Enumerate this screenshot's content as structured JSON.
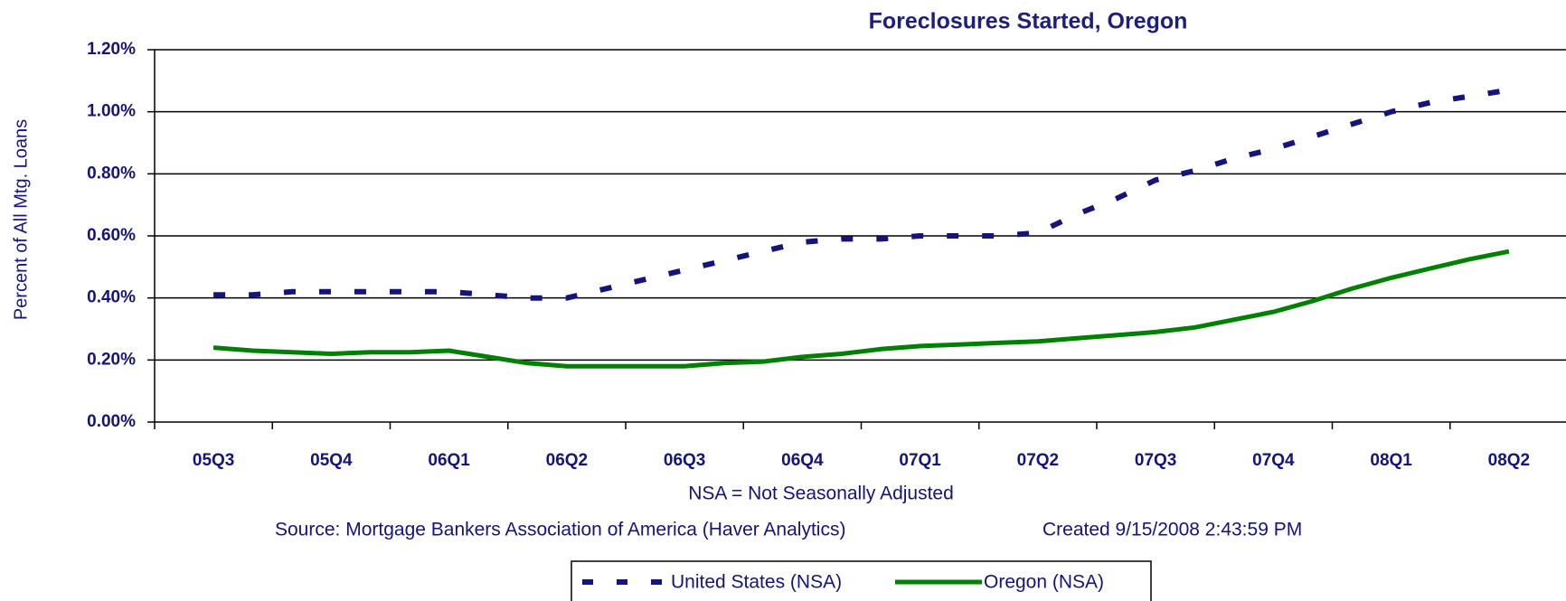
{
  "chart_data": {
    "type": "line",
    "title": "Foreclosures Started, Oregon",
    "ylabel": "Percent of All Mtg. Loans",
    "notes": [
      "NSA = Not Seasonally Adjusted",
      "Source: Mortgage Bankers Association of America (Haver Analytics)",
      "Created  9/15/2008 2:43:59 PM"
    ],
    "categories": [
      "05Q3",
      null,
      null,
      "05Q4",
      null,
      null,
      "06Q1",
      null,
      null,
      "06Q2",
      null,
      null,
      "06Q3",
      null,
      null,
      "06Q4",
      null,
      null,
      "07Q1",
      null,
      null,
      "07Q2",
      null,
      null,
      "07Q3",
      null,
      null,
      "07Q4",
      null,
      null,
      "08Q1",
      null,
      null,
      "08Q2"
    ],
    "series": [
      {
        "name": "United States (NSA)",
        "color": "#14147a",
        "dashed": true,
        "values": [
          0.41,
          0.41,
          0.42,
          0.42,
          0.42,
          0.42,
          0.42,
          0.41,
          0.4,
          0.4,
          0.43,
          0.46,
          0.49,
          0.52,
          0.55,
          0.58,
          0.59,
          0.59,
          0.6,
          0.6,
          0.6,
          0.61,
          0.67,
          0.72,
          0.78,
          0.81,
          0.85,
          0.88,
          0.92,
          0.96,
          1.0,
          1.03,
          1.05,
          1.07
        ]
      },
      {
        "name": "Oregon (NSA)",
        "color": "#008000",
        "dashed": false,
        "values": [
          0.24,
          0.23,
          0.225,
          0.22,
          0.225,
          0.225,
          0.23,
          0.21,
          0.19,
          0.18,
          0.18,
          0.18,
          0.18,
          0.19,
          0.195,
          0.21,
          0.22,
          0.235,
          0.245,
          0.25,
          0.255,
          0.26,
          0.27,
          0.28,
          0.29,
          0.305,
          0.33,
          0.355,
          0.39,
          0.43,
          0.465,
          0.495,
          0.525,
          0.55
        ]
      }
    ],
    "ylim": [
      0,
      1.2
    ],
    "yticks": [
      {
        "value": 0,
        "label": "0.00%"
      },
      {
        "value": 0.2,
        "label": "0.20%"
      },
      {
        "value": 0.4,
        "label": "0.40%"
      },
      {
        "value": 0.6,
        "label": "0.60%"
      },
      {
        "value": 0.8,
        "label": "0.80%"
      },
      {
        "value": 1.0,
        "label": "1.00%"
      },
      {
        "value": 1.2,
        "label": "1.20%"
      }
    ],
    "grid": true,
    "legend": "bottom"
  }
}
